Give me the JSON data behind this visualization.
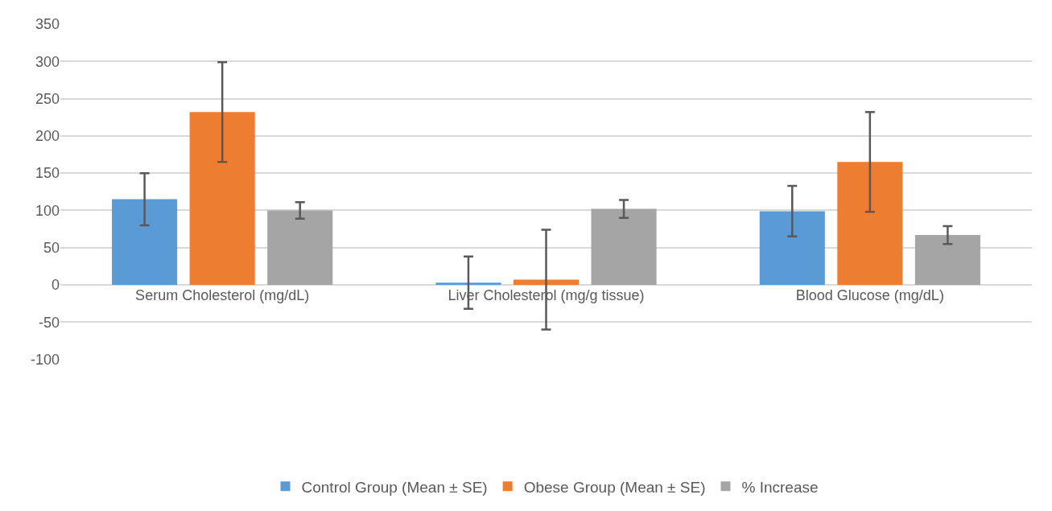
{
  "chart_data": {
    "type": "bar",
    "categories": [
      "Serum Cholesterol (mg/dL)",
      "Liver Cholesterol (mg/g tissue)",
      "Blood Glucose (mg/dL)"
    ],
    "series": [
      {
        "name": "Control Group (Mean ± SE)",
        "color": "#5b9bd5",
        "values": [
          115,
          3,
          99
        ],
        "errors": [
          35,
          35,
          34
        ]
      },
      {
        "name": "Obese Group (Mean ± SE)",
        "color": "#ed7d31",
        "values": [
          232,
          7,
          165
        ],
        "errors": [
          67,
          67,
          67
        ]
      },
      {
        "name": "% Increase",
        "color": "#a5a5a5",
        "values": [
          100,
          102,
          67
        ],
        "errors": [
          11,
          12,
          12
        ]
      }
    ],
    "ylim": [
      -100,
      350
    ],
    "yticks": [
      -100,
      -50,
      0,
      50,
      100,
      150,
      200,
      250,
      300,
      350
    ],
    "grid": "y",
    "legend": "bottom"
  }
}
